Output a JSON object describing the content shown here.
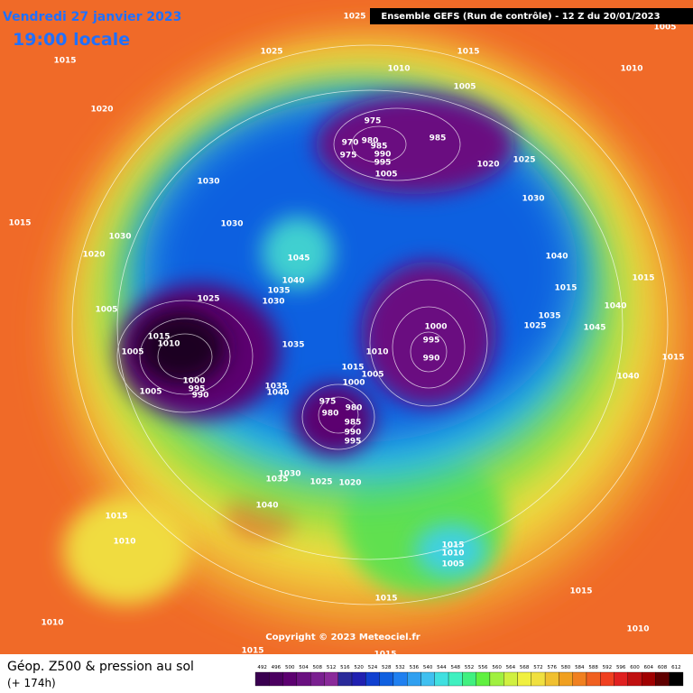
{
  "header": {
    "date": "Vendredi 27 janvier 2023",
    "time": "19:00 locale",
    "run": "Ensemble GEFS  (Run de contrôle)  -  12 Z du 20/01/2023"
  },
  "copyright": "Copyright © 2023 Meteociel.fr",
  "footer": {
    "title": "Géop. Z500 & pression au sol",
    "lead": "(+ 174h)"
  },
  "isobar_labels": [
    1025,
    1005,
    1015,
    1025,
    1015,
    1010,
    1010,
    1005,
    1020,
    975,
    985,
    970,
    980,
    975,
    985,
    990,
    995,
    1005,
    1020,
    1025,
    1030,
    1030,
    1015,
    1030,
    1030,
    1020,
    1045,
    1040,
    1040,
    1015,
    1035,
    1025,
    1030,
    1015,
    1040,
    1005,
    1035,
    1015,
    1010,
    1000,
    995,
    1025,
    1045,
    1005,
    1035,
    1010,
    1015,
    990,
    1015,
    1005,
    1000,
    1040,
    1000,
    995,
    1005,
    990,
    1035,
    1040,
    975,
    980,
    980,
    985,
    990,
    995,
    1030,
    1035,
    1025,
    1020,
    1040,
    1015,
    1010,
    1015,
    1010,
    1005,
    1015,
    1015,
    1010,
    1015,
    1015,
    1010
  ],
  "legend": [
    492,
    496,
    500,
    504,
    508,
    512,
    516,
    520,
    524,
    528,
    532,
    536,
    540,
    544,
    548,
    552,
    556,
    560,
    564,
    568,
    572,
    576,
    580,
    584,
    588,
    592,
    596,
    600,
    604,
    608,
    612
  ]
}
